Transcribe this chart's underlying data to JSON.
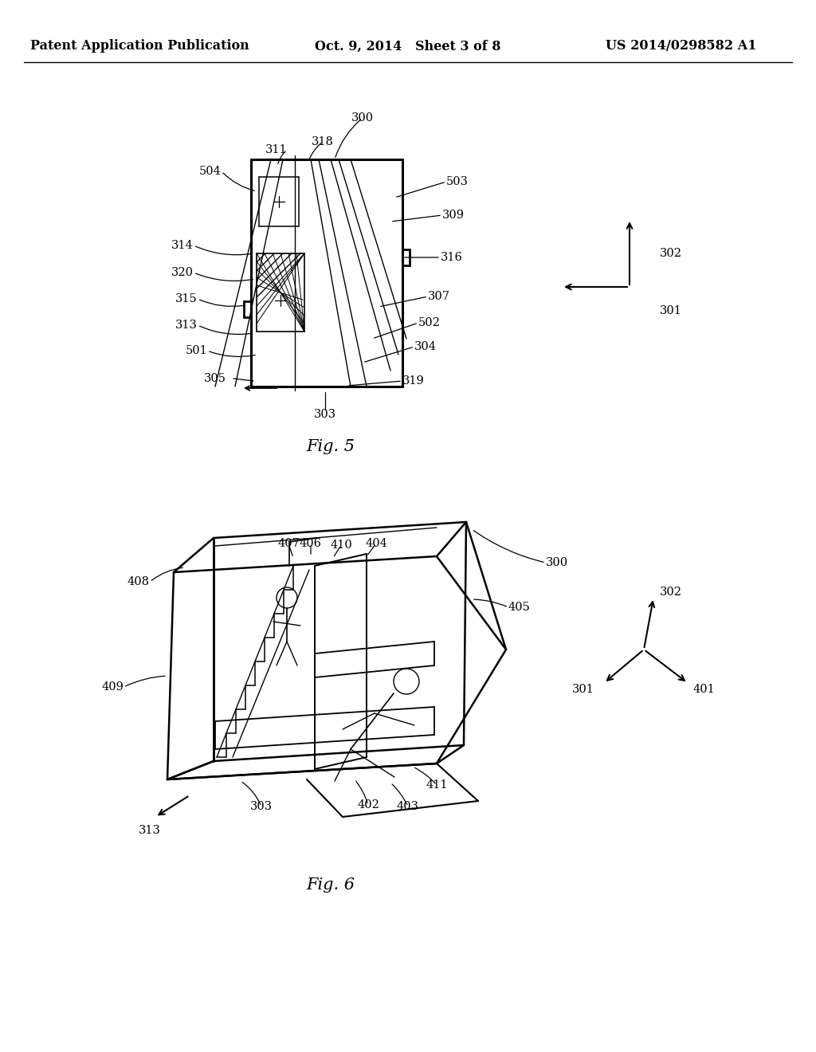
{
  "bg_color": "#ffffff",
  "title_left": "Patent Application Publication",
  "title_center": "Oct. 9, 2014   Sheet 3 of 8",
  "title_right": "US 2014/0298582 A1",
  "fig5_label": "Fig. 5",
  "fig6_label": "Fig. 6",
  "text_color": "#000000",
  "line_color": "#000000"
}
